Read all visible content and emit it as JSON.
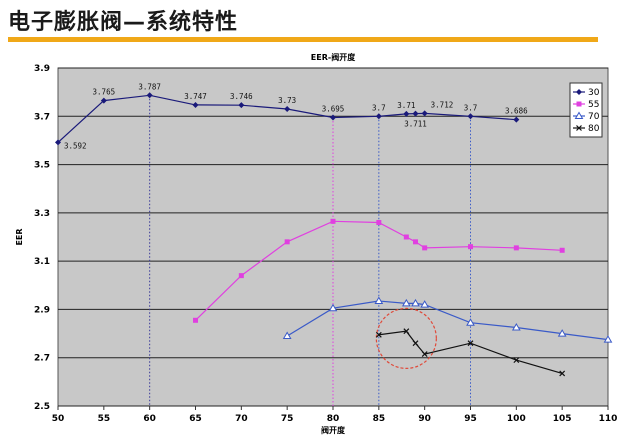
{
  "slide": {
    "title": "电子膨胀阀—系统特性"
  },
  "colors": {
    "accent_rule": "#f0a818",
    "plot_bg": "#c8c8c8",
    "annotation_circle": "#e04a3a"
  },
  "chart_data": {
    "type": "line",
    "title": "EER-阀开度",
    "xlabel": "阀开度",
    "ylabel": "EER",
    "xlim": [
      50,
      110
    ],
    "ylim": [
      2.5,
      3.9
    ],
    "x_ticks": [
      "50",
      "55",
      "60",
      "65",
      "70",
      "75",
      "80",
      "85",
      "90",
      "95",
      "100",
      "105",
      "110"
    ],
    "y_ticks": [
      "2.5",
      "2.7",
      "2.9",
      "3.1",
      "3.3",
      "3.5",
      "3.7",
      "3.9"
    ],
    "grid": "horizontal",
    "legend_position": "right",
    "series": [
      {
        "name": "30",
        "color": "#1a1a7a",
        "marker": "diamond",
        "points": [
          {
            "x": 50,
            "y": 3.592,
            "label": "3.592"
          },
          {
            "x": 55,
            "y": 3.765,
            "label": "3.765"
          },
          {
            "x": 60,
            "y": 3.787,
            "label": "3.787"
          },
          {
            "x": 65,
            "y": 3.747,
            "label": "3.747"
          },
          {
            "x": 70,
            "y": 3.746,
            "label": "3.746"
          },
          {
            "x": 75,
            "y": 3.73,
            "label": "3.73"
          },
          {
            "x": 80,
            "y": 3.695,
            "label": "3.695"
          },
          {
            "x": 85,
            "y": 3.7,
            "label": "3.7"
          },
          {
            "x": 88,
            "y": 3.71,
            "label": "3.71"
          },
          {
            "x": 89,
            "y": 3.711,
            "label": "3.711"
          },
          {
            "x": 90,
            "y": 3.712,
            "label": "3.712"
          },
          {
            "x": 95,
            "y": 3.7,
            "label": "3.7"
          },
          {
            "x": 100,
            "y": 3.686,
            "label": "3.686"
          }
        ]
      },
      {
        "name": "55",
        "color": "#e040e0",
        "marker": "square",
        "points": [
          {
            "x": 65,
            "y": 2.855
          },
          {
            "x": 70,
            "y": 3.04
          },
          {
            "x": 75,
            "y": 3.18
          },
          {
            "x": 80,
            "y": 3.265
          },
          {
            "x": 85,
            "y": 3.26
          },
          {
            "x": 88,
            "y": 3.2
          },
          {
            "x": 89,
            "y": 3.18
          },
          {
            "x": 90,
            "y": 3.155
          },
          {
            "x": 95,
            "y": 3.16
          },
          {
            "x": 100,
            "y": 3.155
          },
          {
            "x": 105,
            "y": 3.145
          }
        ]
      },
      {
        "name": "70",
        "color": "#3a5ac8",
        "marker": "triangle",
        "points": [
          {
            "x": 75,
            "y": 2.79
          },
          {
            "x": 80,
            "y": 2.905
          },
          {
            "x": 85,
            "y": 2.935
          },
          {
            "x": 88,
            "y": 2.925
          },
          {
            "x": 89,
            "y": 2.925
          },
          {
            "x": 90,
            "y": 2.92
          },
          {
            "x": 95,
            "y": 2.845
          },
          {
            "x": 100,
            "y": 2.825
          },
          {
            "x": 105,
            "y": 2.8
          },
          {
            "x": 110,
            "y": 2.775
          }
        ]
      },
      {
        "name": "80",
        "color": "#111111",
        "marker": "x",
        "points": [
          {
            "x": 85,
            "y": 2.795
          },
          {
            "x": 88,
            "y": 2.81
          },
          {
            "x": 89,
            "y": 2.76
          },
          {
            "x": 90,
            "y": 2.715
          },
          {
            "x": 95,
            "y": 2.76
          },
          {
            "x": 100,
            "y": 2.69
          },
          {
            "x": 105,
            "y": 2.635
          }
        ]
      }
    ],
    "reference_lines": [
      {
        "x": 60,
        "color": "#3a3a9a"
      },
      {
        "x": 80,
        "color": "#e040e0"
      },
      {
        "x": 85,
        "color": "#3a5ac8"
      },
      {
        "x": 95,
        "color": "#3a5ac8"
      }
    ],
    "annotation": {
      "type": "circle",
      "center_x": 88,
      "center_y": 2.78
    }
  }
}
